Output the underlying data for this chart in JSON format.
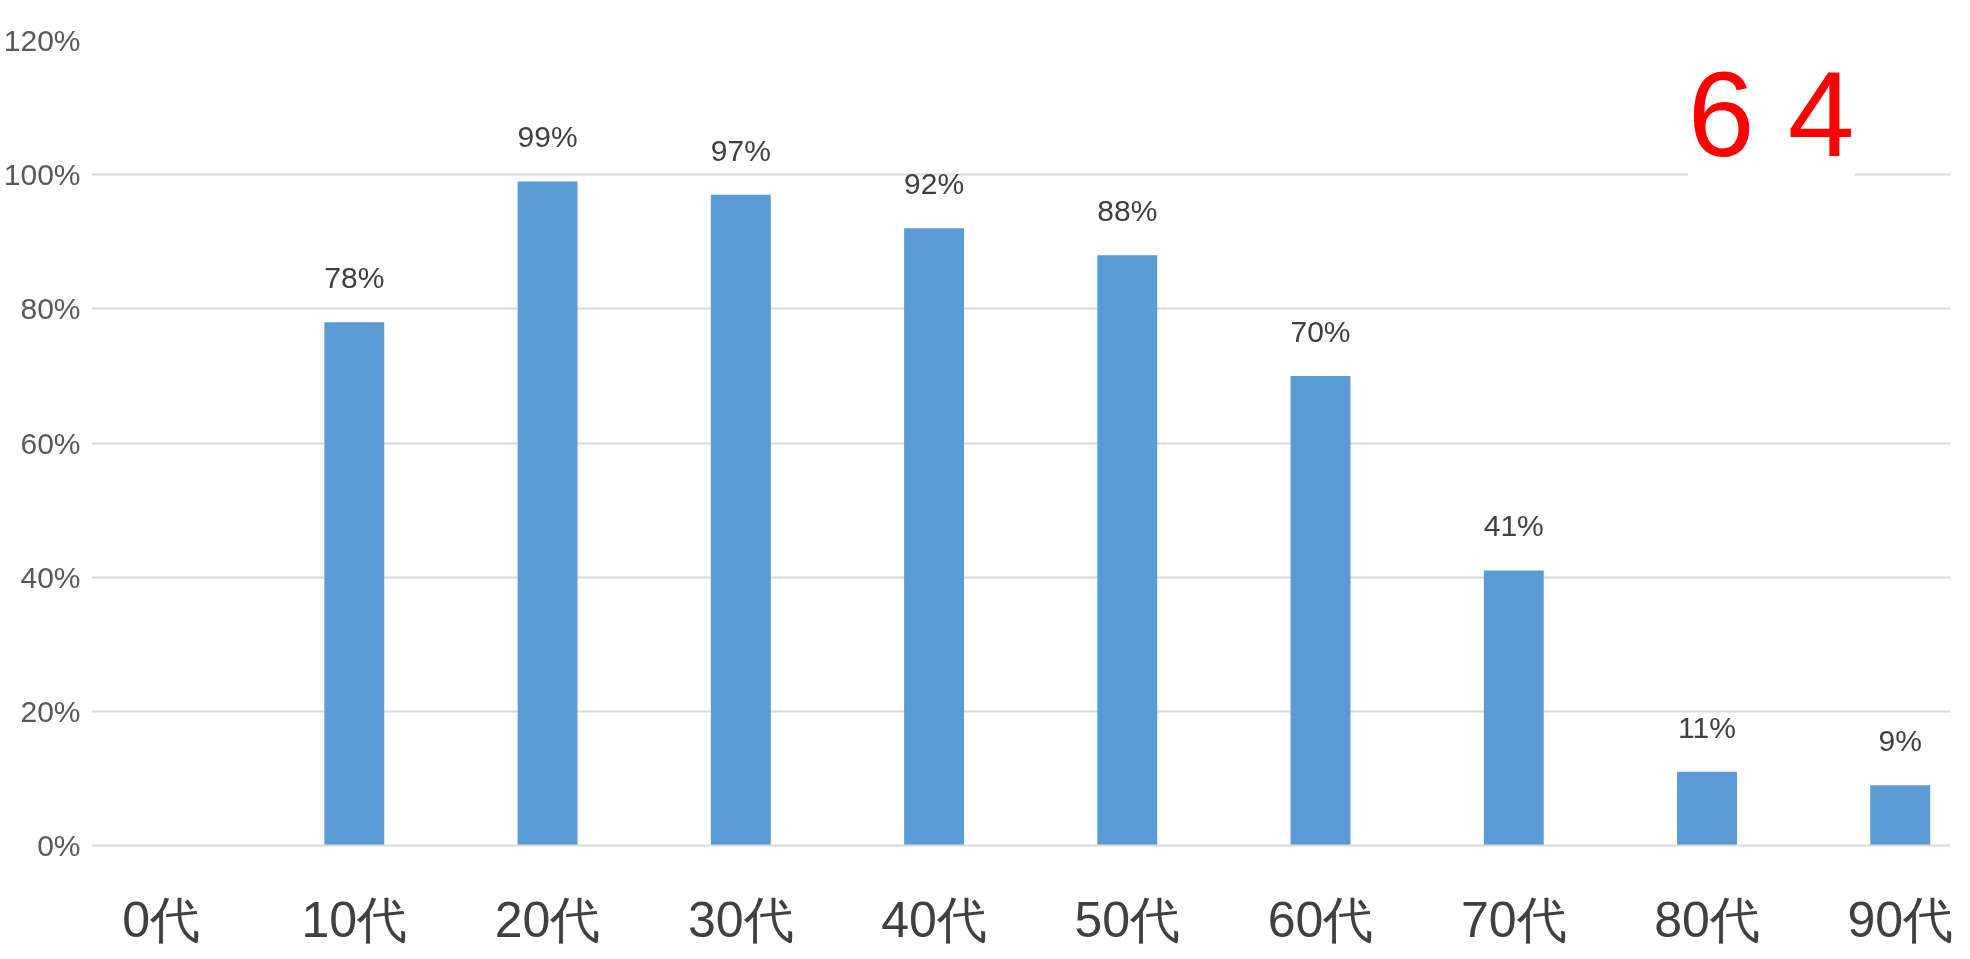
{
  "chart_data": {
    "type": "bar",
    "categories": [
      "0代",
      "10代",
      "20代",
      "30代",
      "40代",
      "50代",
      "60代",
      "70代",
      "80代",
      "90代"
    ],
    "values": [
      null,
      78,
      99,
      97,
      92,
      88,
      70,
      41,
      11,
      9
    ],
    "value_labels": [
      null,
      "78%",
      "99%",
      "97%",
      "92%",
      "88%",
      "70%",
      "41%",
      "11%",
      "9%"
    ],
    "color": "#5b9bd5",
    "ylim": [
      0,
      120
    ],
    "yticks": [
      {
        "value": 0,
        "label": "0%"
      },
      {
        "value": 20,
        "label": "20%"
      },
      {
        "value": 40,
        "label": "40%"
      },
      {
        "value": 60,
        "label": "60%"
      },
      {
        "value": 80,
        "label": "80%"
      },
      {
        "value": 100,
        "label": "100%"
      },
      {
        "value": 120,
        "label": "120%"
      }
    ],
    "grid": "y",
    "annotations": [
      "6 4"
    ]
  }
}
